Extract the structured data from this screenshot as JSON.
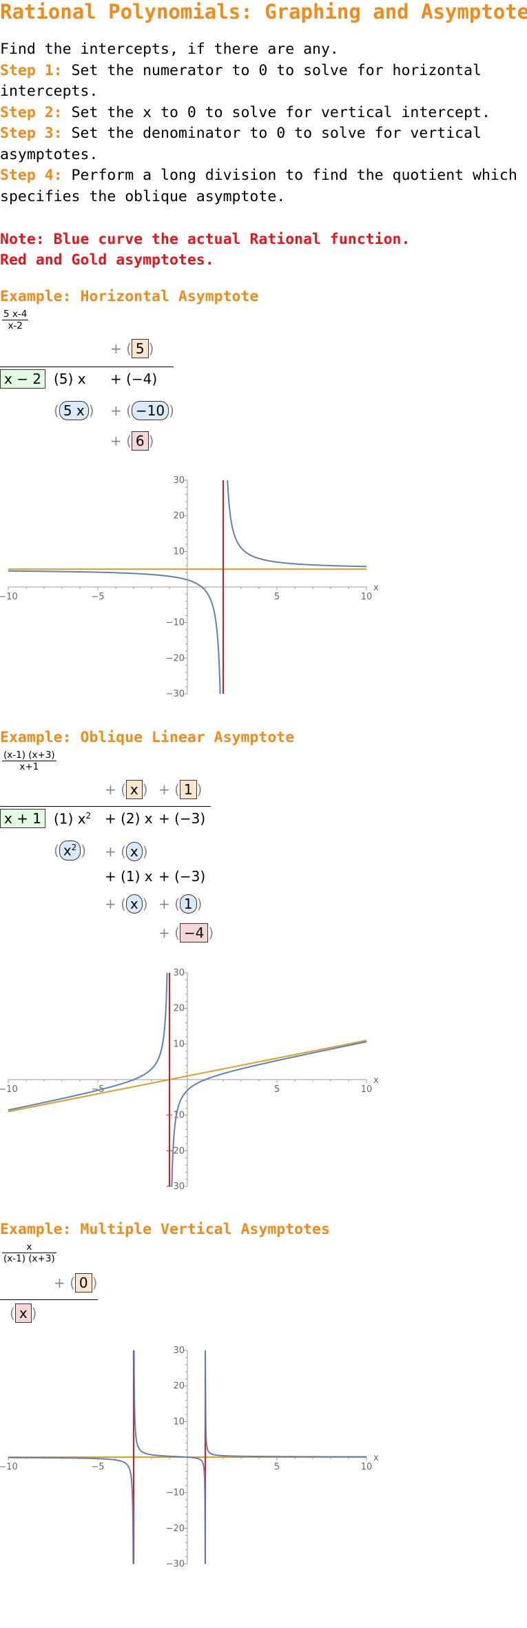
{
  "title": "Rational Polynomials: Graphing and Asymptotes",
  "intro": "Find the intercepts, if there are any.",
  "steps": [
    {
      "label": "Step 1:",
      "text": " Set the numerator to 0 to solve for horizontal intercepts."
    },
    {
      "label": "Step 2:",
      "text": " Set the x to 0 to solve for vertical intercept."
    },
    {
      "label": "Step 3:",
      "text": " Set the denominator to 0 to solve for vertical asymptotes."
    },
    {
      "label": "Step 4:",
      "text": " Perform a long division to find the quotient which specifies the oblique asymptote."
    }
  ],
  "note": [
    "Note: Blue curve the actual Rational function.",
    "Red and Gold asymptotes."
  ],
  "examples": [
    {
      "heading": "Example: Horizontal Asymptote",
      "numerator": "5 x-4",
      "denominator": "x-2",
      "quotient": [
        "5"
      ],
      "divisor": "x − 2",
      "row1": [
        "(5) x",
        "+ (−4)"
      ],
      "row2": [
        "5 x",
        "−10"
      ],
      "remainder": "6"
    },
    {
      "heading": "Example: Oblique Linear Asymptote",
      "numerator": "(x-1) (x+3)",
      "denominator": "x+1",
      "quotient": [
        "x",
        "1"
      ],
      "divisor": "x + 1",
      "row1": [
        "(1) x",
        "+ (2) x",
        "+ (−3)"
      ],
      "row2": [
        "x",
        "x"
      ],
      "row3": [
        "+ (1) x",
        "+ (−3)"
      ],
      "row4": [
        "x",
        "1"
      ],
      "remainder": "−4"
    },
    {
      "heading": "Example: Multiple Vertical Asymptotes",
      "numerator": "x",
      "denominator": "(x-1) (x+3)",
      "quotient": [
        "0"
      ],
      "remainder": "x"
    }
  ],
  "chart_data": [
    {
      "type": "line",
      "function": "(5x-4)/(x-2)",
      "xlim": [
        -10,
        10
      ],
      "ylim": [
        -30,
        30
      ],
      "xticks": [
        -10,
        -5,
        5,
        10
      ],
      "yticks": [
        -30,
        -20,
        -10,
        10,
        20,
        30
      ],
      "xlabel": "x",
      "vertical_asymptotes": [
        2
      ],
      "horizontal_asymptote": 5,
      "colors": {
        "curve": "#5e81b5",
        "vertical": "#e8141c",
        "oblique": "#e19c24"
      }
    },
    {
      "type": "line",
      "function": "(x-1)(x+3)/(x+1)",
      "xlim": [
        -10,
        10
      ],
      "ylim": [
        -30,
        30
      ],
      "xticks": [
        -10,
        -5,
        5,
        10
      ],
      "yticks": [
        -30,
        -20,
        -10,
        10,
        20,
        30
      ],
      "xlabel": "x",
      "vertical_asymptotes": [
        -1
      ],
      "oblique_asymptote": "x+1",
      "colors": {
        "curve": "#5e81b5",
        "vertical": "#e8141c",
        "oblique": "#e19c24"
      }
    },
    {
      "type": "line",
      "function": "x/((x-1)(x+3))",
      "xlim": [
        -10,
        10
      ],
      "ylim": [
        -30,
        30
      ],
      "xticks": [
        -10,
        -5,
        5,
        10
      ],
      "yticks": [
        -30,
        -20,
        -10,
        10,
        20,
        30
      ],
      "xlabel": "x",
      "vertical_asymptotes": [
        -3,
        1
      ],
      "horizontal_asymptote": 0,
      "colors": {
        "curve": "#5e81b5",
        "vertical": "#e8141c",
        "oblique": "#e19c24"
      }
    }
  ]
}
